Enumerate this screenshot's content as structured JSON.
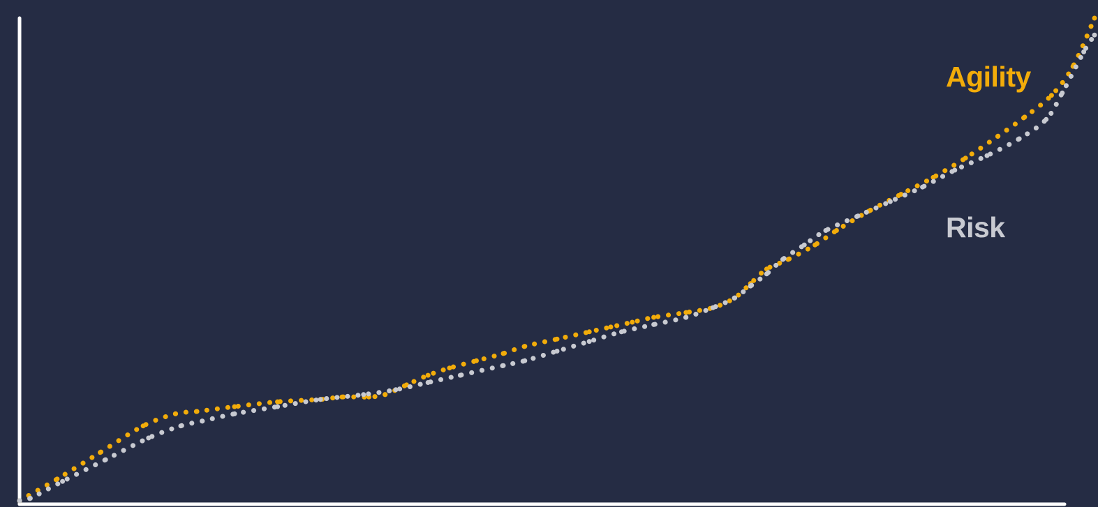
{
  "chart_data": {
    "type": "line",
    "title": "",
    "xlabel": "",
    "ylabel": "",
    "xlim": [
      0,
      100
    ],
    "ylim": [
      0,
      100
    ],
    "grid": false,
    "line_style": "dotted",
    "background_color": "#252c44",
    "axis_color": "#ffffff",
    "series": [
      {
        "name": "Agility",
        "color": "#f2ac0a",
        "x": [
          0,
          3.5,
          7.5,
          11.5,
          14.5,
          16.5,
          20,
          24,
          28,
          30,
          32.5,
          34,
          36,
          38,
          40,
          42.5,
          45,
          47,
          50,
          53,
          55,
          57,
          59,
          62,
          64.5,
          66.5,
          68,
          69.5,
          71.5,
          74,
          76,
          79,
          82,
          85,
          88,
          91,
          93.5,
          96,
          98,
          100
        ],
        "values": [
          0,
          4.5,
          10,
          15.5,
          18,
          18.5,
          19.5,
          20.5,
          21,
          21.5,
          21.5,
          22,
          24,
          26,
          27.5,
          29,
          30.5,
          32,
          33.5,
          35,
          36,
          37,
          38,
          39,
          40,
          42,
          45,
          48,
          50,
          53,
          56,
          60,
          63.5,
          67,
          71,
          75.5,
          79.5,
          84,
          90,
          100
        ]
      },
      {
        "name": "Risk",
        "color": "#c8cad1",
        "x": [
          0,
          1,
          4,
          8,
          12,
          15,
          17,
          20,
          24,
          28,
          32,
          35,
          38,
          41,
          45,
          47,
          50,
          53,
          56,
          59,
          62,
          64.5,
          66.5,
          68,
          69.5,
          71,
          73,
          75,
          78,
          81,
          84,
          87,
          90,
          93,
          95.5,
          97,
          99,
          100
        ],
        "values": [
          0,
          0.5,
          4,
          8.5,
          13,
          15.5,
          16.5,
          18,
          19.5,
          21,
          22,
          23,
          24.5,
          26,
          28,
          29,
          31,
          33,
          35,
          36.5,
          38,
          40,
          42,
          44.5,
          47,
          50,
          53,
          56,
          59,
          62,
          65,
          68.5,
          71.5,
          75,
          79,
          84.5,
          93,
          96.5
        ]
      }
    ]
  }
}
